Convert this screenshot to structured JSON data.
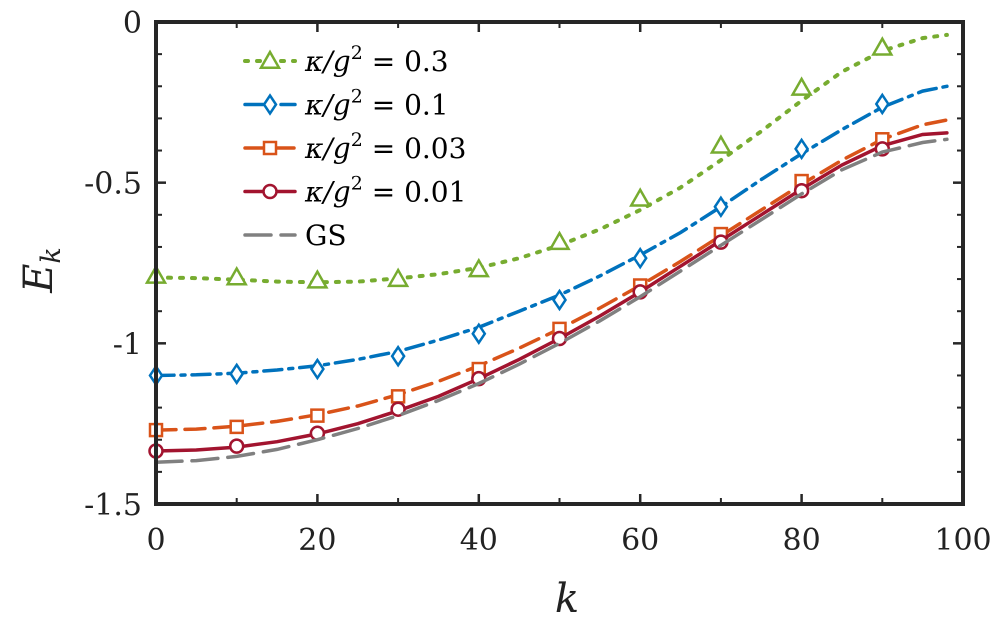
{
  "chart_data": {
    "type": "line",
    "title": "",
    "xlabel": "k",
    "ylabel": "E_k",
    "ylabel_main": "E",
    "ylabel_sub": "k",
    "xlim": [
      0,
      100
    ],
    "ylim": [
      -1.5,
      0
    ],
    "xticks": [
      0,
      20,
      40,
      60,
      80,
      100
    ],
    "xtick_labels": [
      "0",
      "20",
      "40",
      "60",
      "80",
      "100"
    ],
    "yticks": [
      0,
      -0.5,
      -1,
      -1.5
    ],
    "ytick_labels": [
      "0",
      "-0.5",
      "-1",
      "-1.5"
    ],
    "grid": false,
    "legend_position": "top-left",
    "series": [
      {
        "name": "κ/g² = 0.3",
        "legend_prefix": "κ/g",
        "legend_sup": "2",
        "legend_suffix": " = 0.3",
        "color": "#77AC30",
        "dash": "dotted",
        "marker": "triangle",
        "marker_x": [
          0,
          10,
          20,
          30,
          40,
          50,
          60,
          70,
          80,
          90
        ],
        "marker_y": [
          -0.79,
          -0.795,
          -0.805,
          -0.8,
          -0.77,
          -0.685,
          -0.55,
          -0.385,
          -0.205,
          -0.08
        ],
        "curve_x": [
          0,
          5,
          10,
          15,
          20,
          25,
          30,
          35,
          40,
          45,
          50,
          55,
          60,
          65,
          70,
          75,
          80,
          85,
          90,
          95,
          98
        ],
        "curve_y": [
          -0.795,
          -0.797,
          -0.802,
          -0.808,
          -0.81,
          -0.808,
          -0.798,
          -0.785,
          -0.765,
          -0.735,
          -0.695,
          -0.645,
          -0.585,
          -0.515,
          -0.43,
          -0.34,
          -0.245,
          -0.155,
          -0.09,
          -0.05,
          -0.04
        ]
      },
      {
        "name": "κ/g² = 0.1",
        "legend_prefix": "κ/g",
        "legend_sup": "2",
        "legend_suffix": " = 0.1",
        "color": "#0072BD",
        "dash": "dashdot",
        "marker": "diamond",
        "marker_x": [
          0,
          10,
          20,
          30,
          40,
          50,
          60,
          70,
          80,
          90
        ],
        "marker_y": [
          -1.1,
          -1.095,
          -1.08,
          -1.04,
          -0.97,
          -0.865,
          -0.735,
          -0.575,
          -0.395,
          -0.255
        ],
        "curve_x": [
          0,
          5,
          10,
          15,
          20,
          25,
          30,
          35,
          40,
          45,
          50,
          55,
          60,
          65,
          70,
          75,
          80,
          85,
          90,
          95,
          98
        ],
        "curve_y": [
          -1.1,
          -1.098,
          -1.093,
          -1.083,
          -1.07,
          -1.05,
          -1.025,
          -0.99,
          -0.95,
          -0.9,
          -0.85,
          -0.79,
          -0.725,
          -0.655,
          -0.575,
          -0.49,
          -0.41,
          -0.335,
          -0.265,
          -0.215,
          -0.2
        ]
      },
      {
        "name": "κ/g² = 0.03",
        "legend_prefix": "κ/g",
        "legend_sup": "2",
        "legend_suffix": " = 0.03",
        "color": "#D95319",
        "dash": "dashed",
        "marker": "square",
        "marker_x": [
          0,
          10,
          20,
          30,
          40,
          50,
          60,
          70,
          80,
          90
        ],
        "marker_y": [
          -1.27,
          -1.26,
          -1.225,
          -1.165,
          -1.08,
          -0.955,
          -0.82,
          -0.66,
          -0.495,
          -0.365
        ],
        "curve_x": [
          0,
          5,
          10,
          15,
          20,
          25,
          30,
          35,
          40,
          45,
          50,
          55,
          60,
          65,
          70,
          75,
          80,
          85,
          90,
          95,
          98
        ],
        "curve_y": [
          -1.27,
          -1.267,
          -1.258,
          -1.243,
          -1.222,
          -1.195,
          -1.16,
          -1.118,
          -1.07,
          -1.015,
          -0.955,
          -0.89,
          -0.82,
          -0.745,
          -0.665,
          -0.585,
          -0.505,
          -0.43,
          -0.365,
          -0.32,
          -0.305
        ]
      },
      {
        "name": "κ/g² = 0.01",
        "legend_prefix": "κ/g",
        "legend_sup": "2",
        "legend_suffix": " = 0.01",
        "color": "#A2142F",
        "dash": "solid",
        "marker": "circle",
        "marker_x": [
          0,
          10,
          20,
          30,
          40,
          50,
          60,
          70,
          80,
          90
        ],
        "marker_y": [
          -1.335,
          -1.32,
          -1.28,
          -1.205,
          -1.11,
          -0.985,
          -0.84,
          -0.685,
          -0.525,
          -0.395
        ],
        "curve_x": [
          0,
          5,
          10,
          15,
          20,
          25,
          30,
          35,
          40,
          45,
          50,
          55,
          60,
          65,
          70,
          75,
          80,
          85,
          90,
          95,
          98
        ],
        "curve_y": [
          -1.335,
          -1.332,
          -1.323,
          -1.306,
          -1.282,
          -1.25,
          -1.21,
          -1.165,
          -1.11,
          -1.05,
          -0.985,
          -0.915,
          -0.84,
          -0.76,
          -0.68,
          -0.6,
          -0.52,
          -0.445,
          -0.385,
          -0.35,
          -0.345
        ]
      },
      {
        "name": "GS",
        "legend_prefix": "GS",
        "legend_sup": "",
        "legend_suffix": "",
        "color": "#808080",
        "dash": "longdash",
        "marker": "none",
        "marker_x": [],
        "marker_y": [],
        "curve_x": [
          0,
          5,
          10,
          15,
          20,
          25,
          30,
          35,
          40,
          45,
          50,
          55,
          60,
          65,
          70,
          75,
          80,
          85,
          90,
          95,
          98
        ],
        "curve_y": [
          -1.37,
          -1.365,
          -1.352,
          -1.33,
          -1.3,
          -1.265,
          -1.225,
          -1.178,
          -1.125,
          -1.065,
          -1.0,
          -0.93,
          -0.855,
          -0.775,
          -0.695,
          -0.615,
          -0.535,
          -0.46,
          -0.405,
          -0.375,
          -0.365
        ]
      }
    ]
  }
}
